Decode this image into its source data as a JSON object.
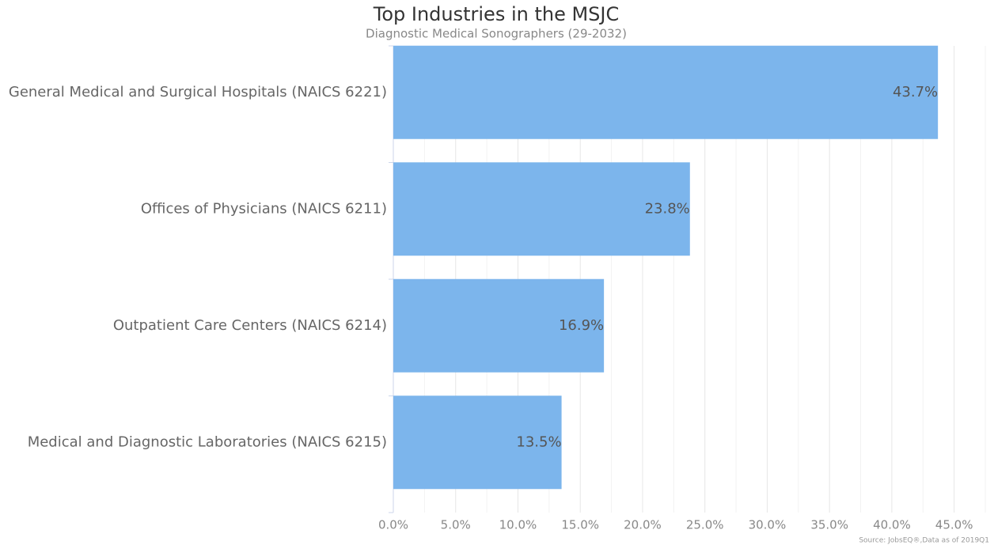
{
  "chart_data": {
    "type": "barh",
    "title": "Top Industries in the MSJC",
    "subtitle": "Diagnostic Medical Sonographers (29-2032)",
    "source": "Source: JobsEQ®,Data as of 2019Q1",
    "categories": [
      "General Medical and Surgical Hospitals (NAICS 6221)",
      "Offices of Physicians (NAICS 6211)",
      "Outpatient Care Centers (NAICS 6214)",
      "Medical and Diagnostic Laboratories (NAICS 6215)"
    ],
    "values": [
      43.7,
      23.8,
      16.9,
      13.5
    ],
    "value_labels": [
      "43.7%",
      "23.8%",
      "16.9%",
      "13.5%"
    ],
    "color": "#7cb5ec",
    "xlim": [
      0,
      47.5
    ],
    "xticks": [
      {
        "value": 0,
        "label": "0.0%"
      },
      {
        "value": 5,
        "label": "5.0%"
      },
      {
        "value": 10,
        "label": "10.0%"
      },
      {
        "value": 15,
        "label": "15.0%"
      },
      {
        "value": 20,
        "label": "20.0%"
      },
      {
        "value": 25,
        "label": "25.0%"
      },
      {
        "value": 30,
        "label": "30.0%"
      },
      {
        "value": 35,
        "label": "35.0%"
      },
      {
        "value": 40,
        "label": "40.0%"
      },
      {
        "value": 45,
        "label": "45.0%"
      }
    ],
    "x_minor_ticks": [
      2.5,
      7.5,
      12.5,
      17.5,
      22.5,
      27.5,
      32.5,
      37.5,
      42.5,
      47.5
    ],
    "grid": true
  }
}
